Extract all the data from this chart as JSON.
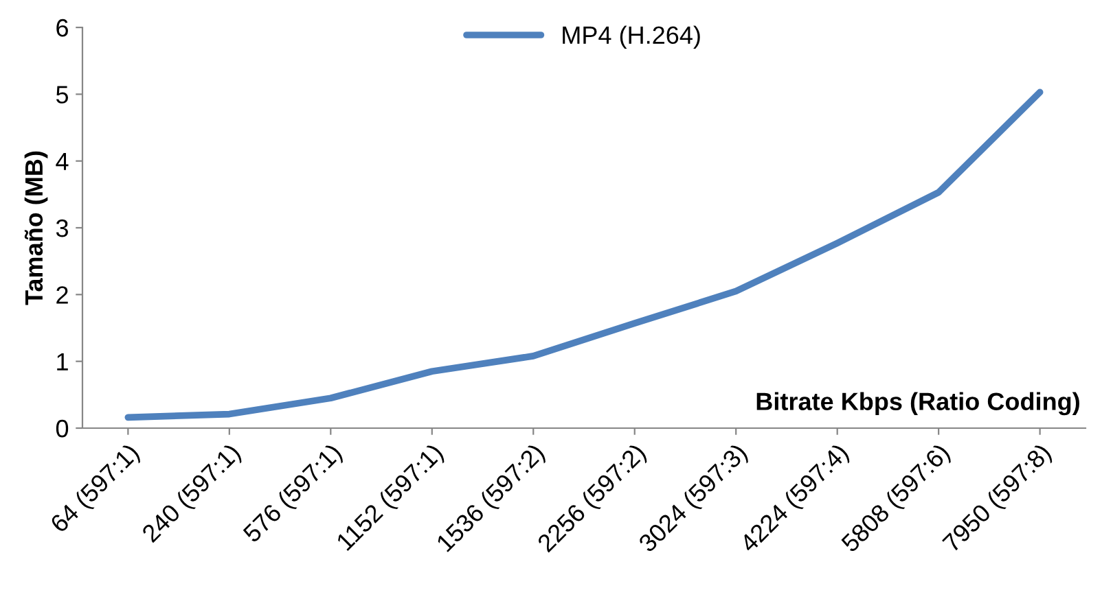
{
  "chart_data": {
    "type": "line",
    "xlabel": "Bitrate Kbps (Ratio Coding)",
    "ylabel": "Tamaño (MB)",
    "categories": [
      "64 (597:1)",
      "240 (597:1)",
      "576 (597:1)",
      "1152 (597:1)",
      "1536 (597:2)",
      "2256 (597:2)",
      "3024 (597:3)",
      "4224 (597:4)",
      "5808 (597:6)",
      "7950 (597:8)"
    ],
    "series": [
      {
        "name": "MP4 (H.264)",
        "color": "#4f81bd",
        "values": [
          0.16,
          0.21,
          0.45,
          0.85,
          1.08,
          1.57,
          2.05,
          2.77,
          3.53,
          5.03
        ]
      }
    ],
    "ylim": [
      0,
      6
    ],
    "yticks": [
      0,
      1,
      2,
      3,
      4,
      5,
      6
    ],
    "grid": false,
    "legend": "top",
    "marker": "none",
    "line_style": "solid"
  }
}
